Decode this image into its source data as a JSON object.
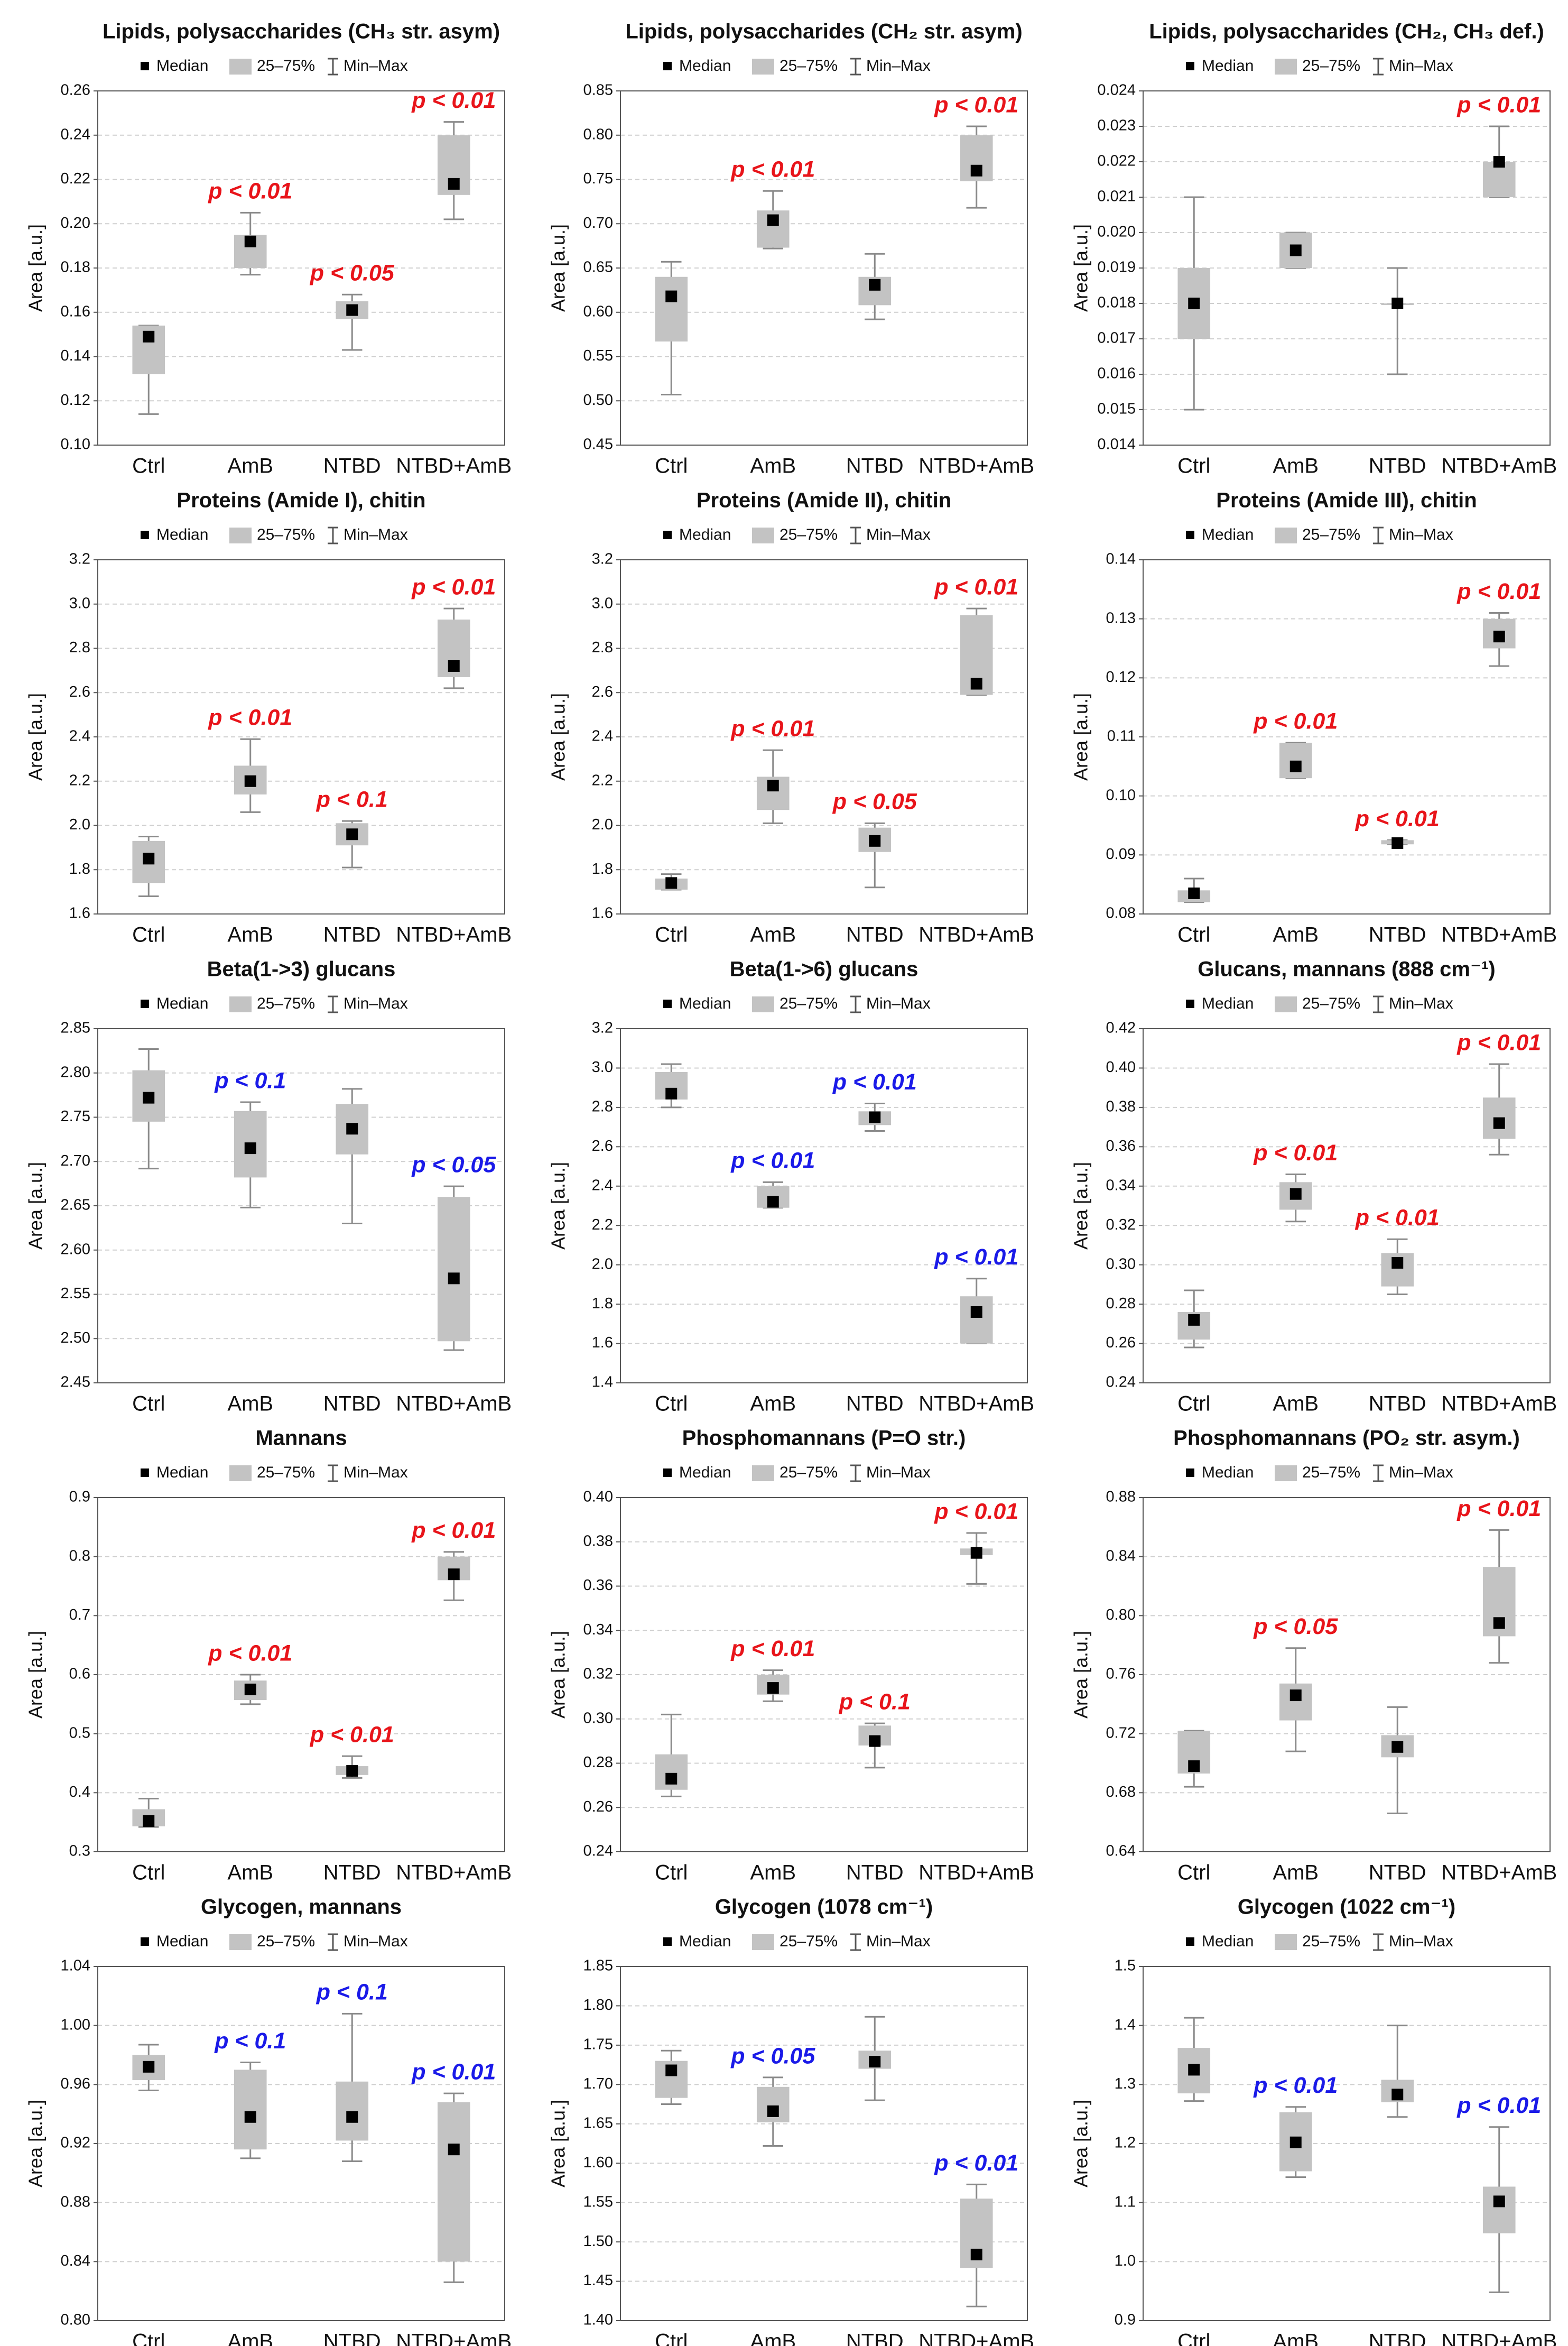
{
  "chart_data": [
    {
      "type": "box",
      "title": "Lipids, polysaccharides (CH₃ str. asym)",
      "legend": [
        "Median",
        "25–75%",
        "Min–Max"
      ],
      "ylabel": "Area [a.u.]",
      "categories": [
        "Ctrl",
        "AmB",
        "NTBD",
        "NTBD+AmB"
      ],
      "min": [
        0.114,
        0.177,
        0.143,
        0.202
      ],
      "q1": [
        0.132,
        0.18,
        0.157,
        0.213
      ],
      "median": [
        0.149,
        0.192,
        0.161,
        0.218
      ],
      "q3": [
        0.154,
        0.195,
        0.165,
        0.24
      ],
      "max": [
        0.154,
        0.205,
        0.168,
        0.246
      ],
      "annotations": [
        null,
        "p < 0.01",
        "p < 0.05",
        "p < 0.01"
      ],
      "annotation_color": "#e8141a",
      "ylim": [
        0.1,
        0.26
      ],
      "yticks": [
        {
          "value": 0.1,
          "label": "0.10"
        },
        0.12,
        0.14,
        0.16,
        0.18,
        {
          "value": 0.2,
          "label": "0.20"
        },
        0.22,
        0.24,
        0.26
      ],
      "grid": true
    },
    {
      "type": "box",
      "title": "Lipids, polysaccharides (CH₂ str. asym)",
      "legend": [
        "Median",
        "25–75%",
        "Min–Max"
      ],
      "ylabel": "Area [a.u.]",
      "categories": [
        "Ctrl",
        "AmB",
        "NTBD",
        "NTBD+AmB"
      ],
      "min": [
        0.507,
        0.672,
        0.592,
        0.718
      ],
      "q1": [
        0.567,
        0.673,
        0.608,
        0.748
      ],
      "median": [
        0.618,
        0.704,
        0.631,
        0.76
      ],
      "q3": [
        0.64,
        0.715,
        0.64,
        0.8
      ],
      "max": [
        0.657,
        0.737,
        0.666,
        0.81
      ],
      "annotations": [
        null,
        "p < 0.01",
        null,
        "p < 0.01"
      ],
      "annotation_color": "#e8141a",
      "ylim": [
        0.45,
        0.85
      ],
      "yticks": [
        0.45,
        {
          "value": 0.5,
          "label": "0.50"
        },
        0.55,
        {
          "value": 0.6,
          "label": "0.60"
        },
        0.65,
        {
          "value": 0.7,
          "label": "0.70"
        },
        0.75,
        {
          "value": 0.8,
          "label": "0.80"
        },
        0.85
      ],
      "grid": true
    },
    {
      "type": "box",
      "title": "Lipids, polysaccharides (CH₂, CH₃ def.)",
      "legend": [
        "Median",
        "25–75%",
        "Min–Max"
      ],
      "ylabel": "Area [a.u.]",
      "categories": [
        "Ctrl",
        "AmB",
        "NTBD",
        "NTBD+AmB"
      ],
      "min": [
        0.015,
        0.019,
        0.016,
        0.021
      ],
      "q1": [
        0.017,
        0.019,
        0.018,
        0.021
      ],
      "median": [
        0.018,
        0.0195,
        0.018,
        0.022
      ],
      "q3": [
        0.019,
        0.02,
        0.018,
        0.022
      ],
      "max": [
        0.021,
        0.02,
        0.019,
        0.023
      ],
      "annotations": [
        null,
        null,
        null,
        "p < 0.01"
      ],
      "annotation_color": "#e8141a",
      "ylim": [
        0.014,
        0.024
      ],
      "yticks": [
        0.014,
        0.015,
        0.016,
        0.017,
        0.018,
        0.019,
        {
          "value": 0.02,
          "label": "0.020"
        },
        0.021,
        0.022,
        0.023,
        0.024
      ],
      "grid": true
    },
    {
      "type": "box",
      "title": "Proteins (Amide I), chitin",
      "legend": [
        "Median",
        "25–75%",
        "Min–Max"
      ],
      "ylabel": "Area [a.u.]",
      "categories": [
        "Ctrl",
        "AmB",
        "NTBD",
        "NTBD+AmB"
      ],
      "min": [
        1.68,
        2.06,
        1.81,
        2.62
      ],
      "q1": [
        1.74,
        2.14,
        1.91,
        2.67
      ],
      "median": [
        1.85,
        2.2,
        1.96,
        2.72
      ],
      "q3": [
        1.93,
        2.27,
        2.01,
        2.93
      ],
      "max": [
        1.95,
        2.39,
        2.02,
        2.98
      ],
      "annotations": [
        null,
        "p < 0.01",
        "p < 0.1",
        "p < 0.01"
      ],
      "annotation_color": "#e8141a",
      "ylim": [
        1.6,
        3.2
      ],
      "yticks": [
        1.6,
        1.8,
        {
          "value": 2,
          "label": "2.0"
        },
        2.2,
        2.4,
        2.6,
        2.8,
        {
          "value": 3,
          "label": "3.0"
        },
        3.2
      ],
      "grid": true
    },
    {
      "type": "box",
      "title": "Proteins (Amide II), chitin",
      "legend": [
        "Median",
        "25–75%",
        "Min–Max"
      ],
      "ylabel": "Area [a.u.]",
      "categories": [
        "Ctrl",
        "AmB",
        "NTBD",
        "NTBD+AmB"
      ],
      "min": [
        1.71,
        2.01,
        1.72,
        2.59
      ],
      "q1": [
        1.71,
        2.07,
        1.88,
        2.59
      ],
      "median": [
        1.74,
        2.18,
        1.93,
        2.64
      ],
      "q3": [
        1.76,
        2.22,
        1.99,
        2.95
      ],
      "max": [
        1.78,
        2.34,
        2.01,
        2.98
      ],
      "annotations": [
        null,
        "p < 0.01",
        "p < 0.05",
        "p < 0.01"
      ],
      "annotation_color": "#e8141a",
      "ylim": [
        1.6,
        3.2
      ],
      "yticks": [
        1.6,
        1.8,
        {
          "value": 2,
          "label": "2.0"
        },
        2.2,
        2.4,
        2.6,
        2.8,
        {
          "value": 3,
          "label": "3.0"
        },
        3.2
      ],
      "grid": true
    },
    {
      "type": "box",
      "title": "Proteins (Amide III), chitin",
      "legend": [
        "Median",
        "25–75%",
        "Min–Max"
      ],
      "ylabel": "Area [a.u.]",
      "categories": [
        "Ctrl",
        "AmB",
        "NTBD",
        "NTBD+AmB"
      ],
      "min": [
        0.082,
        0.103,
        0.0918,
        0.122
      ],
      "q1": [
        0.082,
        0.103,
        0.0918,
        0.125
      ],
      "median": [
        0.0835,
        0.105,
        0.092,
        0.127
      ],
      "q3": [
        0.084,
        0.109,
        0.0925,
        0.13
      ],
      "max": [
        0.086,
        0.109,
        0.0925,
        0.131
      ],
      "annotations": [
        null,
        "p < 0.01",
        "p < 0.01",
        "p < 0.01"
      ],
      "annotation_color": "#e8141a",
      "ylim": [
        0.08,
        0.14
      ],
      "yticks": [
        0.08,
        0.09,
        {
          "value": 0.1,
          "label": "0.10"
        },
        0.11,
        0.12,
        0.13,
        0.14
      ],
      "grid": true
    },
    {
      "type": "box",
      "title": "Beta(1->3) glucans",
      "legend": [
        "Median",
        "25–75%",
        "Min–Max"
      ],
      "ylabel": "Area [a.u.]",
      "categories": [
        "Ctrl",
        "AmB",
        "NTBD",
        "NTBD+AmB"
      ],
      "min": [
        2.692,
        2.648,
        2.63,
        2.487
      ],
      "q1": [
        2.745,
        2.682,
        2.708,
        2.497
      ],
      "median": [
        2.772,
        2.715,
        2.737,
        2.568
      ],
      "q3": [
        2.803,
        2.757,
        2.765,
        2.66
      ],
      "max": [
        2.827,
        2.767,
        2.782,
        2.672
      ],
      "annotations": [
        null,
        "p < 0.1",
        null,
        "p < 0.05"
      ],
      "annotation_color": "#1a1ae8",
      "ylim": [
        2.45,
        2.85
      ],
      "yticks": [
        2.45,
        {
          "value": 2.5,
          "label": "2.50"
        },
        2.55,
        {
          "value": 2.6,
          "label": "2.60"
        },
        2.65,
        {
          "value": 2.7,
          "label": "2.70"
        },
        2.75,
        {
          "value": 2.8,
          "label": "2.80"
        },
        2.85
      ],
      "grid": true
    },
    {
      "type": "box",
      "title": "Beta(1->6) glucans",
      "legend": [
        "Median",
        "25–75%",
        "Min–Max"
      ],
      "ylabel": "Area [a.u.]",
      "categories": [
        "Ctrl",
        "AmB",
        "NTBD",
        "NTBD+AmB"
      ],
      "min": [
        2.8,
        2.29,
        2.68,
        1.6
      ],
      "q1": [
        2.84,
        2.29,
        2.71,
        1.6
      ],
      "median": [
        2.87,
        2.32,
        2.75,
        1.76
      ],
      "q3": [
        2.98,
        2.4,
        2.78,
        1.84
      ],
      "max": [
        3.02,
        2.42,
        2.82,
        1.93
      ],
      "annotations": [
        null,
        "p < 0.01",
        "p < 0.01",
        "p < 0.01"
      ],
      "annotation_color": "#1a1ae8",
      "ylim": [
        1.4,
        3.2
      ],
      "yticks": [
        1.4,
        1.6,
        1.8,
        {
          "value": 2,
          "label": "2.0"
        },
        2.2,
        2.4,
        2.6,
        2.8,
        {
          "value": 3,
          "label": "3.0"
        },
        3.2
      ],
      "grid": true
    },
    {
      "type": "box",
      "title": "Glucans, mannans (888 cm⁻¹)",
      "legend": [
        "Median",
        "25–75%",
        "Min–Max"
      ],
      "ylabel": "Area [a.u.]",
      "categories": [
        "Ctrl",
        "AmB",
        "NTBD",
        "NTBD+AmB"
      ],
      "min": [
        0.258,
        0.322,
        0.285,
        0.356
      ],
      "q1": [
        0.262,
        0.328,
        0.289,
        0.364
      ],
      "median": [
        0.272,
        0.336,
        0.301,
        0.372
      ],
      "q3": [
        0.276,
        0.342,
        0.306,
        0.385
      ],
      "max": [
        0.287,
        0.346,
        0.313,
        0.402
      ],
      "annotations": [
        null,
        "p < 0.01",
        "p < 0.01",
        "p < 0.01"
      ],
      "annotation_color": "#e8141a",
      "ylim": [
        0.24,
        0.42
      ],
      "yticks": [
        0.24,
        0.26,
        0.28,
        {
          "value": 0.3,
          "label": "0.30"
        },
        0.32,
        0.34,
        0.36,
        0.38,
        {
          "value": 0.4,
          "label": "0.40"
        },
        0.42
      ],
      "grid": true
    },
    {
      "type": "box",
      "title": "Mannans",
      "legend": [
        "Median",
        "25–75%",
        "Min–Max"
      ],
      "ylabel": "Area [a.u.]",
      "categories": [
        "Ctrl",
        "AmB",
        "NTBD",
        "NTBD+AmB"
      ],
      "min": [
        0.342,
        0.55,
        0.425,
        0.726
      ],
      "q1": [
        0.343,
        0.557,
        0.43,
        0.76
      ],
      "median": [
        0.352,
        0.575,
        0.437,
        0.77
      ],
      "q3": [
        0.372,
        0.59,
        0.445,
        0.8
      ],
      "max": [
        0.39,
        0.6,
        0.462,
        0.808
      ],
      "annotations": [
        null,
        "p < 0.01",
        "p < 0.01",
        "p < 0.01"
      ],
      "annotation_color": "#e8141a",
      "ylim": [
        0.3,
        0.9
      ],
      "yticks": [
        0.3,
        0.4,
        0.5,
        0.6,
        0.7,
        0.8,
        0.9
      ],
      "grid": true
    },
    {
      "type": "box",
      "title": "Phosphomannans (P=O str.)",
      "legend": [
        "Median",
        "25–75%",
        "Min–Max"
      ],
      "ylabel": "Area [a.u.]",
      "categories": [
        "Ctrl",
        "AmB",
        "NTBD",
        "NTBD+AmB"
      ],
      "min": [
        0.265,
        0.308,
        0.278,
        0.361
      ],
      "q1": [
        0.268,
        0.311,
        0.288,
        0.374
      ],
      "median": [
        0.273,
        0.314,
        0.29,
        0.375
      ],
      "q3": [
        0.284,
        0.32,
        0.297,
        0.377
      ],
      "max": [
        0.302,
        0.322,
        0.298,
        0.384
      ],
      "annotations": [
        null,
        "p < 0.01",
        "p < 0.1",
        "p < 0.01"
      ],
      "annotation_color": "#e8141a",
      "ylim": [
        0.24,
        0.4
      ],
      "yticks": [
        0.24,
        0.26,
        0.28,
        {
          "value": 0.3,
          "label": "0.30"
        },
        0.32,
        0.34,
        0.36,
        0.38,
        {
          "value": 0.4,
          "label": "0.40"
        }
      ],
      "grid": true
    },
    {
      "type": "box",
      "title": "Phosphomannans (PO₂ str. asym.)",
      "legend": [
        "Median",
        "25–75%",
        "Min–Max"
      ],
      "ylabel": "Area [a.u.]",
      "categories": [
        "Ctrl",
        "AmB",
        "NTBD",
        "NTBD+AmB"
      ],
      "min": [
        0.684,
        0.708,
        0.666,
        0.768
      ],
      "q1": [
        0.693,
        0.729,
        0.704,
        0.786
      ],
      "median": [
        0.698,
        0.746,
        0.711,
        0.795
      ],
      "q3": [
        0.722,
        0.754,
        0.719,
        0.833
      ],
      "max": [
        0.722,
        0.778,
        0.738,
        0.858
      ],
      "annotations": [
        null,
        "p < 0.05",
        null,
        "p < 0.01"
      ],
      "annotation_color": "#e8141a",
      "ylim": [
        0.64,
        0.88
      ],
      "yticks": [
        0.64,
        0.68,
        0.72,
        0.76,
        {
          "value": 0.8,
          "label": "0.80"
        },
        0.84,
        0.88
      ],
      "grid": true
    },
    {
      "type": "box",
      "title": "Glycogen, mannans",
      "legend": [
        "Median",
        "25–75%",
        "Min–Max"
      ],
      "ylabel": "Area [a.u.]",
      "categories": [
        "Ctrl",
        "AmB",
        "NTBD",
        "NTBD+AmB"
      ],
      "min": [
        0.956,
        0.91,
        0.908,
        0.826
      ],
      "q1": [
        0.963,
        0.916,
        0.922,
        0.84
      ],
      "median": [
        0.972,
        0.938,
        0.938,
        0.916
      ],
      "q3": [
        0.98,
        0.97,
        0.962,
        0.948
      ],
      "max": [
        0.987,
        0.975,
        1.008,
        0.954
      ],
      "annotations": [
        null,
        "p < 0.1",
        "p < 0.1",
        "p < 0.01"
      ],
      "annotation_color": "#1a1ae8",
      "ylim": [
        0.8,
        1.04
      ],
      "yticks": [
        {
          "value": 0.8,
          "label": "0.80"
        },
        0.84,
        0.88,
        0.92,
        0.96,
        {
          "value": 1,
          "label": "1.00"
        },
        1.04
      ],
      "grid": true
    },
    {
      "type": "box",
      "title": "Glycogen (1078 cm⁻¹)",
      "legend": [
        "Median",
        "25–75%",
        "Min–Max"
      ],
      "ylabel": "Area [a.u.]",
      "categories": [
        "Ctrl",
        "AmB",
        "NTBD",
        "NTBD+AmB"
      ],
      "min": [
        1.675,
        1.622,
        1.68,
        1.418
      ],
      "q1": [
        1.683,
        1.652,
        1.72,
        1.467
      ],
      "median": [
        1.718,
        1.666,
        1.729,
        1.484
      ],
      "q3": [
        1.73,
        1.697,
        1.743,
        1.555
      ],
      "max": [
        1.743,
        1.709,
        1.786,
        1.573
      ],
      "annotations": [
        null,
        "p < 0.05",
        null,
        "p < 0.01"
      ],
      "annotation_color": "#1a1ae8",
      "ylim": [
        1.4,
        1.85
      ],
      "yticks": [
        {
          "value": 1.4,
          "label": "1.40"
        },
        1.45,
        {
          "value": 1.5,
          "label": "1.50"
        },
        1.55,
        {
          "value": 1.6,
          "label": "1.60"
        },
        1.65,
        {
          "value": 1.7,
          "label": "1.70"
        },
        1.75,
        {
          "value": 1.8,
          "label": "1.80"
        },
        1.85
      ],
      "grid": true
    },
    {
      "type": "box",
      "title": "Glycogen (1022 cm⁻¹)",
      "legend": [
        "Median",
        "25–75%",
        "Min–Max"
      ],
      "ylabel": "Area [a.u.]",
      "categories": [
        "Ctrl",
        "AmB",
        "NTBD",
        "NTBD+AmB"
      ],
      "min": [
        1.272,
        1.143,
        1.245,
        0.948
      ],
      "q1": [
        1.285,
        1.153,
        1.27,
        1.048
      ],
      "median": [
        1.325,
        1.202,
        1.283,
        1.102
      ],
      "q3": [
        1.362,
        1.253,
        1.308,
        1.127
      ],
      "max": [
        1.413,
        1.262,
        1.4,
        1.228
      ],
      "annotations": [
        null,
        "p < 0.01",
        null,
        "p < 0.01"
      ],
      "annotation_color": "#1a1ae8",
      "ylim": [
        0.9,
        1.5
      ],
      "yticks": [
        0.9,
        {
          "value": 1,
          "label": "1.0"
        },
        1.1,
        1.2,
        1.3,
        1.4,
        1.5
      ],
      "grid": true
    }
  ]
}
